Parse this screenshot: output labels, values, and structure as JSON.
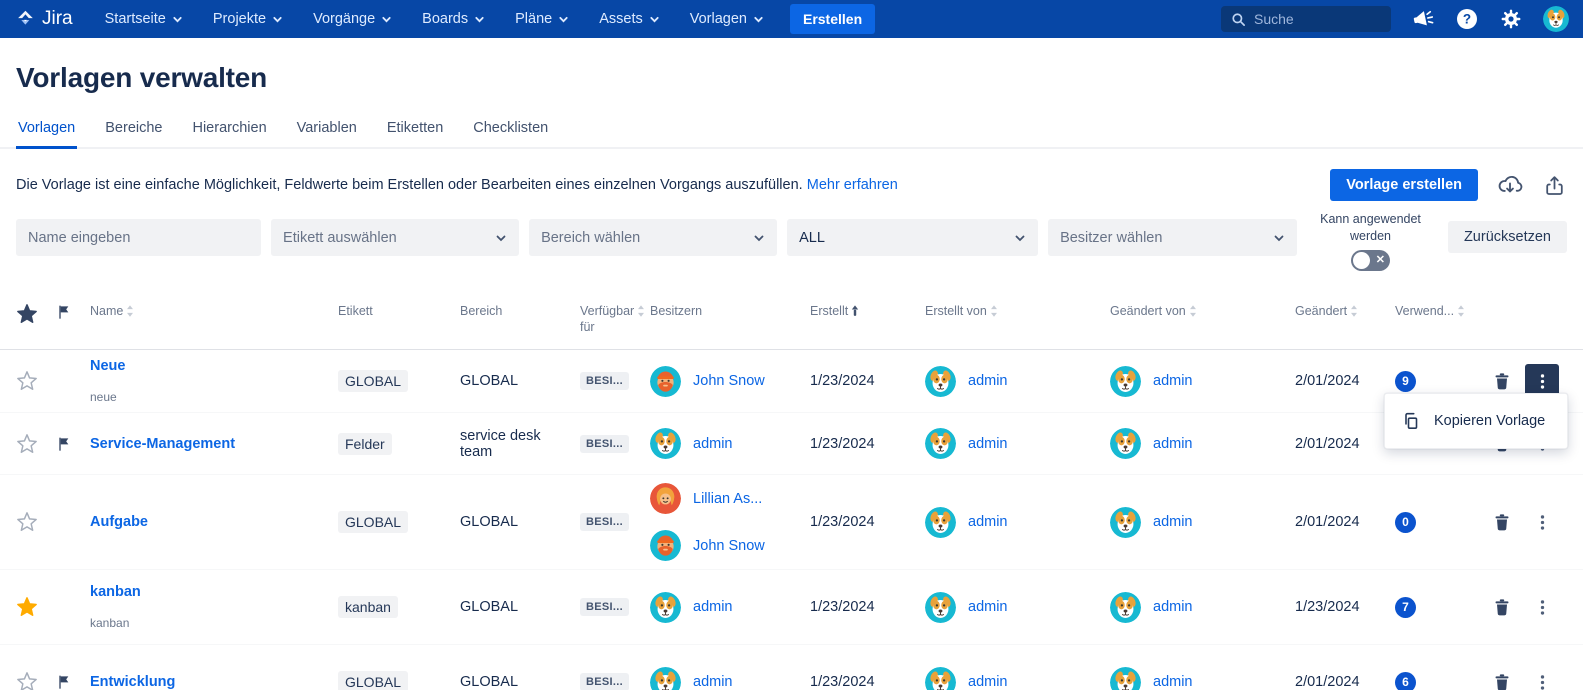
{
  "nav": {
    "logo_label": "Jira",
    "items": [
      "Startseite",
      "Projekte",
      "Vorgänge",
      "Boards",
      "Pläne",
      "Assets",
      "Vorlagen"
    ],
    "create_button": "Erstellen",
    "search_placeholder": "Suche",
    "icons": [
      "megaphone-icon",
      "help-icon",
      "gear-icon",
      "user-avatar"
    ]
  },
  "header": {
    "title": "Vorlagen verwalten"
  },
  "tabs": [
    {
      "label": "Vorlagen",
      "active": true
    },
    {
      "label": "Bereiche",
      "active": false
    },
    {
      "label": "Hierarchien",
      "active": false
    },
    {
      "label": "Variablen",
      "active": false
    },
    {
      "label": "Etiketten",
      "active": false
    },
    {
      "label": "Checklisten",
      "active": false
    }
  ],
  "description": {
    "text": "Die Vorlage ist eine einfache Möglichkeit, Feldwerte beim Erstellen oder Bearbeiten eines einzelnen Vorgangs auszufüllen.",
    "link": "Mehr erfahren"
  },
  "toolbar": {
    "create_label": "Vorlage erstellen",
    "icons": [
      "cloud-download-icon",
      "export-icon"
    ]
  },
  "filters": {
    "name_placeholder": "Name eingeben",
    "etikett_placeholder": "Etikett auswählen",
    "bereich_placeholder": "Bereich wählen",
    "status_value": "ALL",
    "besitzer_placeholder": "Besitzer wählen",
    "toggle_label": "Kann angewendet werden",
    "toggle_state": "off",
    "reset_label": "Zurücksetzen"
  },
  "table": {
    "columns": [
      {
        "label": "Name",
        "sort": "both"
      },
      {
        "label": "Etikett",
        "sort": "none"
      },
      {
        "label": "Bereich",
        "sort": "none"
      },
      {
        "label": "Verfügbar für",
        "sort": "both"
      },
      {
        "label": "Besitzern",
        "sort": "none"
      },
      {
        "label": "Erstellt",
        "sort": "asc"
      },
      {
        "label": "Erstellt von",
        "sort": "both"
      },
      {
        "label": "Geändert von",
        "sort": "both"
      },
      {
        "label": "Geändert",
        "sort": "both"
      },
      {
        "label": "Verwend...",
        "sort": "both"
      }
    ],
    "rows": [
      {
        "name": "Neue",
        "subtitle": "neue",
        "starred": false,
        "flagged": false,
        "etikett": "GLOBAL",
        "bereich": "GLOBAL",
        "verfuegbar_fuer": "BESI...",
        "owners": [
          {
            "name": "John Snow",
            "avatar": "john-snow"
          }
        ],
        "erstellt": "1/23/2024",
        "erstellt_von": {
          "name": "admin",
          "avatar": "dog"
        },
        "geaendert_von": {
          "name": "admin",
          "avatar": "dog"
        },
        "geaendert": "2/01/2024",
        "verwendungen": "9",
        "menu_open": true
      },
      {
        "name": "Service-Management",
        "subtitle": "",
        "starred": false,
        "flagged": true,
        "etikett": "Felder",
        "bereich": "service desk team",
        "verfuegbar_fuer": "BESI...",
        "owners": [
          {
            "name": "admin",
            "avatar": "dog"
          }
        ],
        "erstellt": "1/23/2024",
        "erstellt_von": {
          "name": "admin",
          "avatar": "dog"
        },
        "geaendert_von": {
          "name": "admin",
          "avatar": "dog"
        },
        "geaendert": "2/01/2024",
        "verwendungen": "",
        "menu_open": false
      },
      {
        "name": "Aufgabe",
        "subtitle": "",
        "starred": false,
        "flagged": false,
        "etikett": "GLOBAL",
        "bereich": "GLOBAL",
        "verfuegbar_fuer": "BESI...",
        "owners": [
          {
            "name": "Lillian As...",
            "avatar": "lillian"
          },
          {
            "name": "John Snow",
            "avatar": "john-snow"
          }
        ],
        "erstellt": "1/23/2024",
        "erstellt_von": {
          "name": "admin",
          "avatar": "dog"
        },
        "geaendert_von": {
          "name": "admin",
          "avatar": "dog"
        },
        "geaendert": "2/01/2024",
        "verwendungen": "0",
        "menu_open": false
      },
      {
        "name": "kanban",
        "subtitle": "kanban",
        "starred": true,
        "flagged": false,
        "etikett": "kanban",
        "bereich": "GLOBAL",
        "verfuegbar_fuer": "BESI...",
        "owners": [
          {
            "name": "admin",
            "avatar": "dog"
          }
        ],
        "erstellt": "1/23/2024",
        "erstellt_von": {
          "name": "admin",
          "avatar": "dog"
        },
        "geaendert_von": {
          "name": "admin",
          "avatar": "dog"
        },
        "geaendert": "1/23/2024",
        "verwendungen": "7",
        "menu_open": false
      },
      {
        "name": "Entwicklung",
        "subtitle": "",
        "starred": false,
        "flagged": true,
        "etikett": "GLOBAL",
        "bereich": "GLOBAL",
        "verfuegbar_fuer": "BESI...",
        "owners": [
          {
            "name": "admin",
            "avatar": "dog"
          }
        ],
        "erstellt": "1/23/2024",
        "erstellt_von": {
          "name": "admin",
          "avatar": "dog"
        },
        "geaendert_von": {
          "name": "admin",
          "avatar": "dog"
        },
        "geaendert": "2/01/2024",
        "verwendungen": "6",
        "menu_open": false
      }
    ]
  },
  "context_menu": {
    "items": [
      {
        "icon": "copy-icon",
        "label": "Kopieren Vorlage"
      }
    ]
  },
  "colors": {
    "navbar": "#0747A6",
    "primary_button": "#0C66E4",
    "link": "#0C66E4",
    "badge": "#0B53CE",
    "star_active": "#FFAB00",
    "avatar_bg_cyan": "#17B9D2",
    "avatar_bg_red": "#E85639"
  }
}
